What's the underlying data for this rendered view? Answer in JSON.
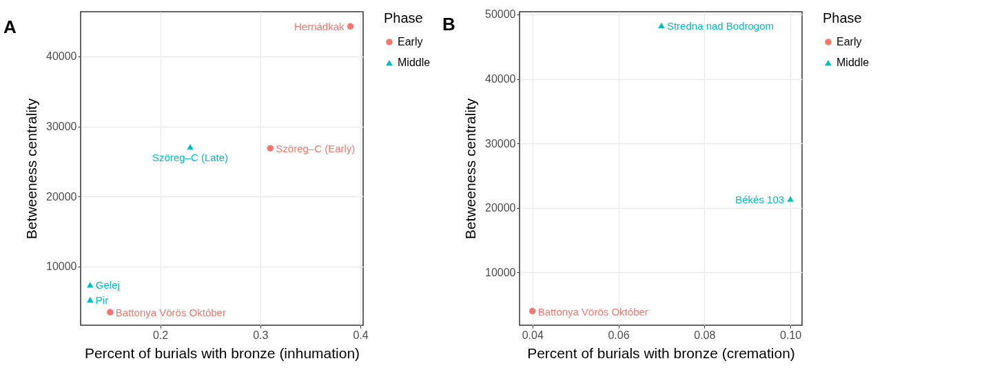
{
  "chart_data": [
    {
      "type": "scatter",
      "title": "A",
      "xlabel": "Percent of burials with bronze (inhumation)",
      "ylabel": "Betweeness centrality",
      "legend_title": "Phase",
      "legend": "right",
      "grid": true,
      "xlim": [
        0.1205,
        0.4027
      ],
      "ylim": [
        1640,
        46390
      ],
      "xticks": [
        0.2,
        0.3,
        0.4
      ],
      "yticks": [
        10000,
        20000,
        30000,
        40000
      ],
      "series": [
        {
          "name": "Early",
          "color": "#f8766d",
          "marker": "circle",
          "x": [
            0.39,
            0.31,
            0.15
          ],
          "values": [
            44300,
            26900,
            3500
          ]
        },
        {
          "name": "Middle",
          "color": "#00bfc4",
          "marker": "triangle",
          "x": [
            0.23,
            0.13,
            0.13
          ],
          "values": [
            27100,
            7400,
            5300
          ]
        }
      ],
      "annotations": [
        {
          "text": "Hernádkak",
          "x": 0.39,
          "y": 44300
        },
        {
          "text": "Szöreg–C (Early)",
          "x": 0.31,
          "y": 26900
        },
        {
          "text": "Battonya Vörös Október",
          "x": 0.15,
          "y": 3500
        },
        {
          "text": "Szöreg–C (Late)",
          "x": 0.23,
          "y": 27100
        },
        {
          "text": "Gelej",
          "x": 0.13,
          "y": 7400
        },
        {
          "text": "Pir",
          "x": 0.13,
          "y": 5300
        }
      ]
    },
    {
      "type": "scatter",
      "title": "B",
      "xlabel": "Percent of burials with bronze (cremation)",
      "ylabel": "Betweeness centrality",
      "legend_title": "Phase",
      "legend": "right",
      "grid": true,
      "xlim": [
        0.037,
        0.1027
      ],
      "ylim": [
        1810,
        50420
      ],
      "xticks": [
        0.04,
        0.06,
        0.08,
        {
          "value": 0.1,
          "label": "0.10"
        }
      ],
      "yticks": [
        10000,
        20000,
        30000,
        40000,
        50000
      ],
      "series": [
        {
          "name": "Early",
          "color": "#f8766d",
          "marker": "circle",
          "x": [
            0.04
          ],
          "values": [
            4000
          ]
        },
        {
          "name": "Middle",
          "color": "#00bfc4",
          "marker": "triangle",
          "x": [
            0.07,
            0.1
          ],
          "values": [
            48300,
            21400
          ]
        }
      ],
      "annotations": [
        {
          "text": "Battonya Vörös Október",
          "x": 0.04,
          "y": 4000
        },
        {
          "text": "Stredna nad Bodrogom",
          "x": 0.07,
          "y": 48300
        },
        {
          "text": "Békés 103",
          "x": 0.1,
          "y": 21400
        }
      ]
    }
  ]
}
